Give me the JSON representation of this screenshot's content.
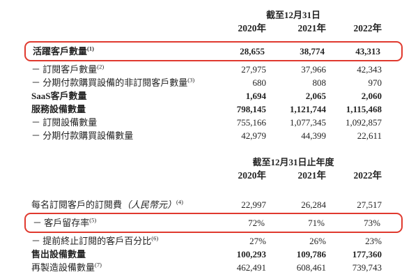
{
  "colors": {
    "highlight_border": "#e0392e",
    "text": "#242424",
    "background": "#ffffff"
  },
  "section1": {
    "period_header": "截至12月31日",
    "years": [
      "2020年",
      "2021年",
      "2022年"
    ],
    "rows": [
      {
        "label": "活躍客戶數量",
        "sup": "(1)",
        "bold": true,
        "highlighted": true,
        "values": [
          "28,655",
          "38,774",
          "43,313"
        ]
      },
      {
        "label": "－ 訂閱客戶數量",
        "sup": "(2)",
        "bold": false,
        "highlighted": false,
        "values": [
          "27,975",
          "37,966",
          "42,343"
        ]
      },
      {
        "label": "－ 分期付款購買設備的非訂閱客戶數量",
        "sup": "(3)",
        "bold": false,
        "highlighted": false,
        "values": [
          "680",
          "808",
          "970"
        ]
      },
      {
        "label": "SaaS客戶數量",
        "bold": true,
        "highlighted": false,
        "values": [
          "1,694",
          "2,065",
          "2,060"
        ]
      },
      {
        "label": "服務設備數量",
        "bold": true,
        "highlighted": false,
        "values": [
          "798,145",
          "1,121,744",
          "1,115,468"
        ]
      },
      {
        "label": "－ 訂閱設備數量",
        "bold": false,
        "highlighted": false,
        "values": [
          "755,166",
          "1,077,345",
          "1,092,857"
        ]
      },
      {
        "label": "－ 分期付款購買設備數量",
        "bold": false,
        "highlighted": false,
        "values": [
          "42,979",
          "44,399",
          "22,611"
        ]
      }
    ]
  },
  "section2": {
    "period_header": "截至12月31日止年度",
    "years": [
      "2020年",
      "2021年",
      "2022年"
    ],
    "rows": [
      {
        "label": "每名訂閱客戶的訂閱費",
        "label_note": "（人民幣元）",
        "sup": "(4)",
        "bold": false,
        "highlighted": false,
        "values": [
          "22,997",
          "26,284",
          "27,517"
        ]
      },
      {
        "label": "－ 客戶留存率",
        "sup": "(5)",
        "bold": false,
        "highlighted": true,
        "values": [
          "72%",
          "71%",
          "73%"
        ]
      },
      {
        "label": "－ 提前終止訂閱的客戶百分比",
        "sup": "(6)",
        "bold": false,
        "highlighted": false,
        "values": [
          "27%",
          "26%",
          "23%"
        ]
      },
      {
        "label": "售出設備數量",
        "bold": true,
        "highlighted": false,
        "values": [
          "100,293",
          "109,786",
          "177,360"
        ]
      },
      {
        "label": "再製造設備數量",
        "sup": "(7)",
        "bold": false,
        "highlighted": false,
        "values": [
          "462,491",
          "608,461",
          "739,743"
        ]
      }
    ]
  }
}
